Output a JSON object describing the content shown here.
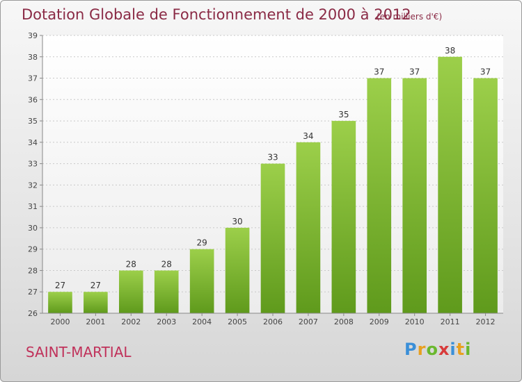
{
  "title": "Dotation Globale de Fonctionnement de 2000 à 2012",
  "subtitle": "(en milliers d'€)",
  "commune": "SAINT-MARTIAL",
  "logo": {
    "letters": [
      "P",
      "r",
      "o",
      "x",
      "i",
      "t",
      "i"
    ],
    "colors": [
      "#3a8fd8",
      "#e8a020",
      "#6ab82e",
      "#d83a3a",
      "#3a8fd8",
      "#e8a020",
      "#6ab82e"
    ]
  },
  "chart_data": {
    "type": "bar",
    "categories": [
      "2000",
      "2001",
      "2002",
      "2003",
      "2004",
      "2005",
      "2006",
      "2007",
      "2008",
      "2009",
      "2010",
      "2011",
      "2012"
    ],
    "values": [
      27,
      27,
      28,
      28,
      29,
      30,
      33,
      34,
      35,
      37,
      37,
      38,
      37
    ],
    "title": "Dotation Globale de Fonctionnement de 2000 à 2012",
    "subtitle": "(en milliers d'€)",
    "ylim": [
      26,
      39
    ],
    "yticks": [
      26,
      27,
      28,
      29,
      30,
      31,
      32,
      33,
      34,
      35,
      36,
      37,
      38,
      39
    ],
    "grid": true,
    "bar_color": "#7ab82e"
  }
}
